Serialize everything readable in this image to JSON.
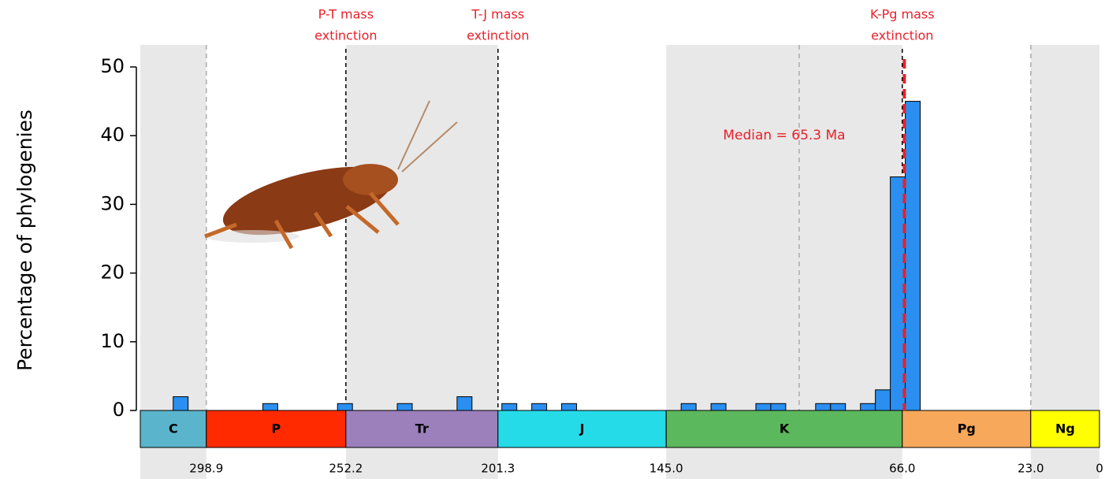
{
  "chart_data": {
    "type": "histogram",
    "ylabel": "Percentage of phylogenies",
    "xlim": [
      321,
      0
    ],
    "ylim": [
      0,
      50
    ],
    "yticks": [
      0,
      10,
      20,
      30,
      40,
      50
    ],
    "xticks": [
      298.9,
      252.2,
      201.3,
      {
        "value": 145,
        "label": "145.0"
      },
      {
        "value": 66,
        "label": "66.0"
      },
      {
        "value": 23,
        "label": "23.0"
      },
      0
    ],
    "bins": [
      310,
      305,
      300,
      295,
      290,
      285,
      280,
      275,
      270,
      265,
      260,
      255,
      250,
      245,
      240,
      235,
      230,
      225,
      220,
      215,
      210,
      205,
      200,
      195,
      190,
      185,
      180,
      175,
      170,
      165,
      160,
      155,
      150,
      145,
      140,
      135,
      130,
      125,
      120,
      115,
      110,
      105,
      100,
      95,
      90,
      85,
      80,
      75,
      70,
      65,
      60
    ],
    "counts": [
      2,
      0,
      0,
      0,
      0,
      0,
      1,
      0,
      0,
      0,
      0,
      1,
      0,
      0,
      0,
      1,
      0,
      0,
      0,
      2,
      0,
      0,
      1,
      0,
      1,
      0,
      1,
      0,
      0,
      0,
      0,
      0,
      0,
      0,
      1,
      0,
      1,
      0,
      0,
      1,
      1,
      0,
      0,
      1,
      1,
      0,
      1,
      3,
      34,
      45
    ],
    "color": "#2a8ff0",
    "periods": [
      {
        "name": "C",
        "start": 321,
        "end": 298.9,
        "color": "#5ab4cb"
      },
      {
        "name": "P",
        "start": 298.9,
        "end": 252.2,
        "color": "#ff2a00"
      },
      {
        "name": "Tr",
        "start": 252.2,
        "end": 201.3,
        "color": "#9c80bb"
      },
      {
        "name": "J",
        "start": 201.3,
        "end": 145,
        "color": "#26dbe8"
      },
      {
        "name": "K",
        "start": 145,
        "end": 66,
        "color": "#5cb85c"
      },
      {
        "name": "Pg",
        "start": 66,
        "end": 23,
        "color": "#f7a85a"
      },
      {
        "name": "Ng",
        "start": 23,
        "end": 0,
        "color": "#ffff00"
      }
    ],
    "boundary_lines": [
      298.9,
      100.5,
      23
    ],
    "extinctions": [
      {
        "label": [
          "P-T mass",
          "extinction"
        ],
        "x": 252.2
      },
      {
        "label": [
          "T-J mass",
          "extinction"
        ],
        "x": 201.3
      },
      {
        "label": [
          "K-Pg mass",
          "extinction"
        ],
        "x": 66
      }
    ],
    "median": {
      "x": 65.3,
      "label": "Median = 65.3 Ma",
      "color": "#e8202a"
    }
  }
}
